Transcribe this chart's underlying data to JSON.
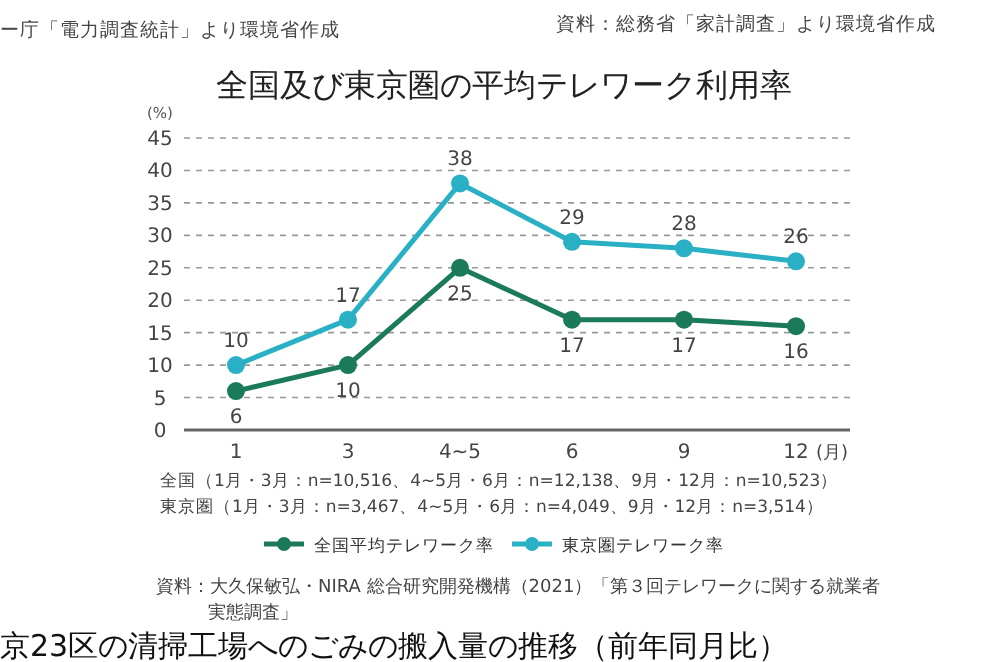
{
  "chart_data": {
    "type": "line",
    "title": "全国及び東京圏の平均テレワーク利用率",
    "xlabel": "(月)",
    "ylabel": "(%)",
    "categories": [
      "1",
      "3",
      "4~5",
      "6",
      "9",
      "12"
    ],
    "series": [
      {
        "name": "全国平均テレワーク率",
        "color": "#1a7a5a",
        "values": [
          6,
          10,
          25,
          17,
          17,
          16
        ]
      },
      {
        "name": "東京圏テレワーク率",
        "color": "#2ab0c4",
        "values": [
          10,
          17,
          38,
          29,
          28,
          26
        ]
      }
    ],
    "ylim": [
      0,
      45
    ],
    "yticks": [
      0,
      5,
      10,
      15,
      20,
      25,
      30,
      35,
      40,
      45
    ],
    "grid": "y",
    "line_style": "solid",
    "marker": "circle",
    "data_labels": true,
    "legend": "bottom",
    "annotations": [
      "全国（1月・3月：n=10,516、4~5月・6月：n=12,138、9月・12月：n=10,523）",
      "東京圏（1月・3月：n=3,467、4~5月・6月：n=4,049、9月・12月：n=3,514）",
      "資料：大久保敏弘・NIRA 総合研究開発機構（2021）「第３回テレワークに関する就業者実態調査」",
      "ー庁「電力調査統計」より環境省作成",
      "資料：総務省「家計調査」より環境省作成",
      "京23区の清掃工場へのごみの搬入量の推移（前年同月比）"
    ]
  }
}
